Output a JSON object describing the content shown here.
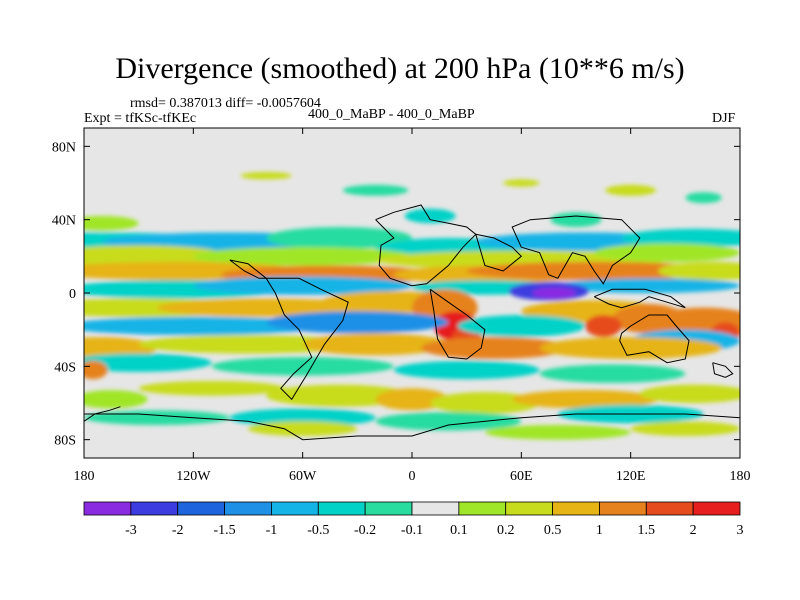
{
  "chart_data": {
    "type": "heatmap",
    "title": "Divergence (smoothed) at 200 hPa (10**6 m/s)",
    "stats_line": "rmsd= 0.387013 diff= -0.0057604",
    "experiment_label": "Expt = tfKSc-tfKEc",
    "comparison_label": "400_0_MaBP - 400_0_MaBP",
    "season": "DJF",
    "x_range": [
      -180,
      180
    ],
    "y_range": [
      -90,
      90
    ],
    "x_ticks": [
      {
        "value": -180,
        "label": "180"
      },
      {
        "value": -120,
        "label": "120W"
      },
      {
        "value": -60,
        "label": "60W"
      },
      {
        "value": 0,
        "label": "0"
      },
      {
        "value": 60,
        "label": "60E"
      },
      {
        "value": 120,
        "label": "120E"
      },
      {
        "value": 180,
        "label": "180"
      }
    ],
    "y_ticks": [
      {
        "value": 80,
        "label": "80N"
      },
      {
        "value": 40,
        "label": "40N"
      },
      {
        "value": 0,
        "label": "0"
      },
      {
        "value": -40,
        "label": "40S"
      },
      {
        "value": -80,
        "label": "80S"
      }
    ],
    "colorbar": {
      "boundaries": [
        "-3",
        "-2",
        "-1.5",
        "-1",
        "-0.5",
        "-0.2",
        "-0.1",
        "0.1",
        "0.2",
        "0.5",
        "1",
        "1.5",
        "2",
        "3"
      ],
      "colors": [
        "#8a2be2",
        "#3c3ce0",
        "#1e64dc",
        "#1e90e6",
        "#14b4e6",
        "#00d2c8",
        "#28dca0",
        "#e6e6e6",
        "#a0e628",
        "#c8dc1e",
        "#e6b414",
        "#e6821e",
        "#e64b1e",
        "#e61e1e"
      ]
    },
    "notes": "Filled contour map of 200 hPa divergence difference; dominant features: zonal bands in tropics/subtropics, strong negative (blue/purple) core near 75E 0N, positive (orange/red) centres near 20E 10S and 90-120E 10-20S."
  }
}
